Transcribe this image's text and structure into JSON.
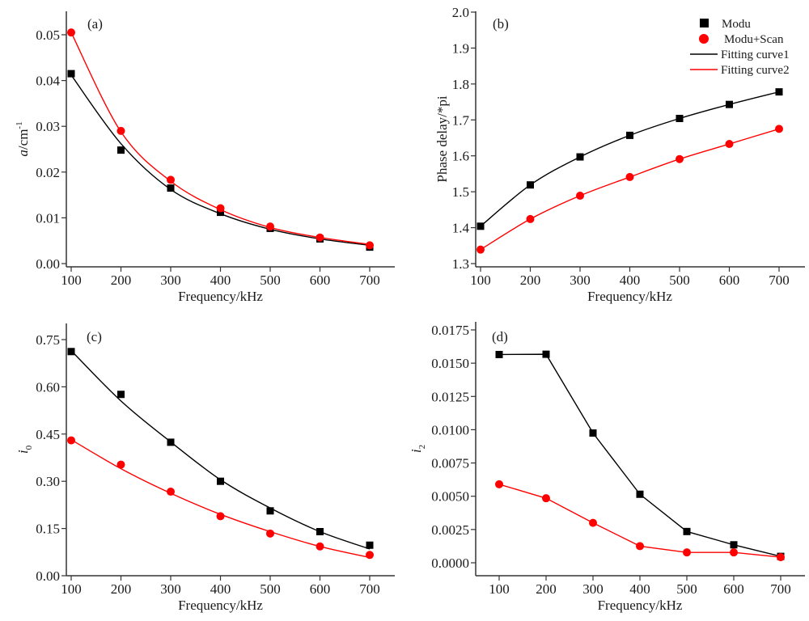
{
  "chart_data": [
    {
      "id": "a",
      "type": "scatter",
      "panel_label": "(a)",
      "xlabel": "Frequency/kHz",
      "ylabel_main": "a",
      "ylabel_unit": "/cm",
      "ylabel_sup": "-1",
      "xlim": [
        90,
        750
      ],
      "ylim": [
        0.0,
        0.05
      ],
      "xticks": [
        100,
        200,
        300,
        400,
        500,
        600,
        700
      ],
      "xtick_labels": [
        "100",
        "200",
        "300",
        "400",
        "500",
        "600",
        "700"
      ],
      "yticks": [
        0.0,
        0.01,
        0.02,
        0.03,
        0.04,
        0.05
      ],
      "ytick_labels": [
        "0.00",
        "0.01",
        "0.02",
        "0.03",
        "0.04",
        "0.05"
      ],
      "x": [
        100,
        200,
        300,
        400,
        500,
        600,
        700
      ],
      "series": [
        {
          "name": "Modu",
          "marker": "square",
          "color": "#000000",
          "values": [
            0.0415,
            0.0248,
            0.0165,
            0.0112,
            0.0077,
            0.0054,
            0.0036
          ],
          "fit": "smooth",
          "fit_values": [
            0.0412,
            0.0262,
            0.0162,
            0.0109,
            0.0075,
            0.0054,
            0.004
          ]
        },
        {
          "name": "Modu+Scan",
          "marker": "circle",
          "color": "#ff0000",
          "values": [
            0.0505,
            0.029,
            0.0183,
            0.0121,
            0.0081,
            0.0057,
            0.004
          ],
          "fit": "smooth",
          "fit_values": [
            0.0505,
            0.0288,
            0.018,
            0.0118,
            0.0079,
            0.0057,
            0.0042
          ]
        }
      ]
    },
    {
      "id": "b",
      "type": "line",
      "panel_label": "(b)",
      "xlabel": "Frequency/kHz",
      "ylabel": "Phase delay/*pi",
      "xlim": [
        90,
        750
      ],
      "ylim": [
        1.3,
        2.0
      ],
      "xticks": [
        100,
        200,
        300,
        400,
        500,
        600,
        700
      ],
      "xtick_labels": [
        "100",
        "200",
        "300",
        "400",
        "500",
        "600",
        "700"
      ],
      "yticks": [
        1.3,
        1.4,
        1.5,
        1.6,
        1.7,
        1.8,
        1.9,
        2.0
      ],
      "ytick_labels": [
        "1.3",
        "1.4",
        "1.5",
        "1.6",
        "1.7",
        "1.8",
        "1.9",
        "2.0"
      ],
      "x": [
        100,
        200,
        300,
        400,
        500,
        600,
        700
      ],
      "series": [
        {
          "name": "Modu",
          "marker": "square",
          "color": "#000000",
          "values": [
            1.404,
            1.519,
            1.597,
            1.657,
            1.704,
            1.743,
            1.778
          ],
          "fit": "smooth"
        },
        {
          "name": "Modu+Scan",
          "marker": "circle",
          "color": "#ff0000",
          "values": [
            1.339,
            1.424,
            1.489,
            1.541,
            1.591,
            1.633,
            1.675
          ],
          "fit": "smooth"
        }
      ],
      "legend": {
        "position": "top-right",
        "entries": [
          {
            "label": "Modu",
            "kind": "square",
            "color": "#000000"
          },
          {
            "label": "Modu+Scan",
            "kind": "circle",
            "color": "#ff0000"
          },
          {
            "label": "Fitting curve1",
            "kind": "line",
            "color": "#000000"
          },
          {
            "label": "Fitting curve2",
            "kind": "line",
            "color": "#ff0000"
          }
        ]
      }
    },
    {
      "id": "c",
      "type": "scatter",
      "panel_label": "(c)",
      "xlabel": "Frequency/kHz",
      "ylabel_main": "i",
      "ylabel_sub": "0",
      "xlim": [
        90,
        750
      ],
      "ylim": [
        0.0,
        0.8
      ],
      "xticks": [
        100,
        200,
        300,
        400,
        500,
        600,
        700
      ],
      "xtick_labels": [
        "100",
        "200",
        "300",
        "400",
        "500",
        "600",
        "700"
      ],
      "yticks": [
        0.0,
        0.15,
        0.3,
        0.45,
        0.6,
        0.75
      ],
      "ytick_labels": [
        "0.00",
        "0.15",
        "0.30",
        "0.45",
        "0.60",
        "0.75"
      ],
      "x": [
        100,
        200,
        300,
        400,
        500,
        600,
        700
      ],
      "series": [
        {
          "name": "Modu",
          "marker": "square",
          "color": "#000000",
          "values": [
            0.712,
            0.576,
            0.424,
            0.3,
            0.206,
            0.14,
            0.097
          ],
          "fit": "smooth",
          "fit_values": [
            0.715,
            0.555,
            0.425,
            0.305,
            0.215,
            0.14,
            0.085
          ]
        },
        {
          "name": "Modu+Scan",
          "marker": "circle",
          "color": "#ff0000",
          "values": [
            0.43,
            0.353,
            0.267,
            0.189,
            0.134,
            0.093,
            0.066
          ],
          "fit": "smooth",
          "fit_values": [
            0.432,
            0.34,
            0.262,
            0.195,
            0.14,
            0.093,
            0.058
          ]
        }
      ]
    },
    {
      "id": "d",
      "type": "line",
      "panel_label": "(d)",
      "xlabel": "Frequency/kHz",
      "ylabel_main": "i",
      "ylabel_sub": "2",
      "xlim": [
        50,
        750
      ],
      "ylim": [
        0.0,
        0.0175
      ],
      "xticks": [
        100,
        200,
        300,
        400,
        500,
        600,
        700
      ],
      "xtick_labels": [
        "100",
        "200",
        "300",
        "400",
        "500",
        "600",
        "700"
      ],
      "yticks": [
        0.0,
        0.0025,
        0.005,
        0.0075,
        0.01,
        0.0125,
        0.015,
        0.0175
      ],
      "ytick_labels": [
        "0.0000",
        "0.0025",
        "0.0050",
        "0.0075",
        "0.0100",
        "0.0125",
        "0.0150",
        "0.0175"
      ],
      "x": [
        100,
        200,
        300,
        400,
        500,
        600,
        700
      ],
      "series": [
        {
          "name": "Modu",
          "marker": "square",
          "color": "#000000",
          "values": [
            0.01565,
            0.01567,
            0.00975,
            0.00515,
            0.00235,
            0.00135,
            0.00048
          ],
          "fit": "straight"
        },
        {
          "name": "Modu+Scan",
          "marker": "circle",
          "color": "#ff0000",
          "values": [
            0.0059,
            0.00485,
            0.003,
            0.00125,
            0.00078,
            0.00078,
            0.00042
          ],
          "fit": "straight"
        }
      ]
    }
  ]
}
